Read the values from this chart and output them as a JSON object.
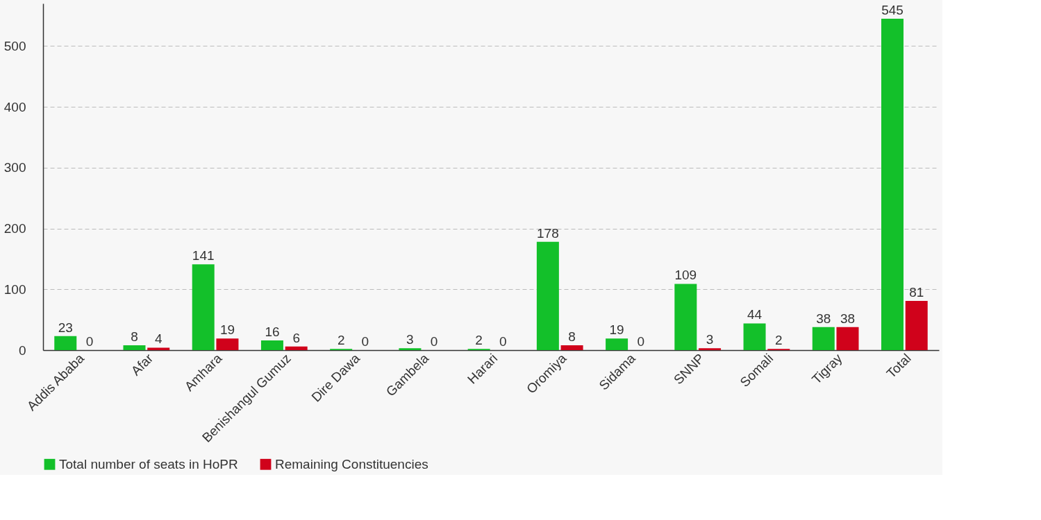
{
  "chart_data": {
    "type": "bar",
    "categories": [
      "Addis Ababa",
      "Afar",
      "Amhara",
      "Benishangul Gumuz",
      "Dire Dawa",
      "Gambela",
      "Harari",
      "Oromiya",
      "Sidama",
      "SNNP",
      "Somali",
      "Tigray",
      "Total"
    ],
    "series": [
      {
        "name": "Total number of seats in HoPR",
        "color": "#13c02a",
        "values": [
          23,
          8,
          141,
          16,
          2,
          3,
          2,
          178,
          19,
          109,
          44,
          38,
          545
        ]
      },
      {
        "name": "Remaining Constituencies",
        "color": "#d0021b",
        "values": [
          0,
          4,
          19,
          6,
          0,
          0,
          0,
          8,
          0,
          3,
          2,
          38,
          81
        ]
      }
    ],
    "ylim": [
      0,
      570
    ],
    "yticks": [
      0,
      100,
      200,
      300,
      400,
      500
    ],
    "grid": "y",
    "legend": "bottom",
    "data_labels": true
  }
}
